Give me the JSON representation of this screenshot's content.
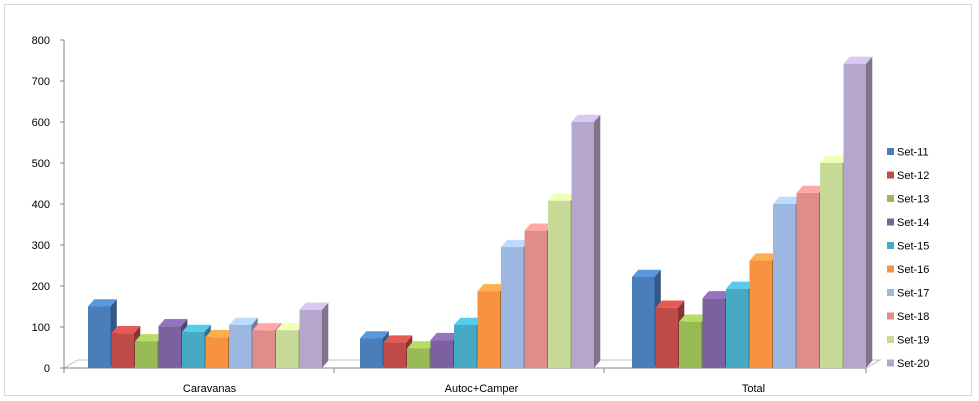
{
  "chart_data": {
    "type": "bar",
    "style": "3d-clustered-column",
    "categories": [
      "Caravanas",
      "Autoc+Camper",
      "Total"
    ],
    "series": [
      {
        "name": "Set-11",
        "color": "#4a7ebb",
        "values": [
          150,
          72,
          222
        ]
      },
      {
        "name": "Set-12",
        "color": "#be4b48",
        "values": [
          85,
          62,
          147
        ]
      },
      {
        "name": "Set-13",
        "color": "#98b954",
        "values": [
          65,
          48,
          113
        ]
      },
      {
        "name": "Set-14",
        "color": "#7d60a0",
        "values": [
          102,
          68,
          170
        ]
      },
      {
        "name": "Set-15",
        "color": "#46aac5",
        "values": [
          88,
          105,
          193
        ]
      },
      {
        "name": "Set-16",
        "color": "#f69240",
        "values": [
          75,
          187,
          262
        ]
      },
      {
        "name": "Set-17",
        "color": "#9cb7e0",
        "values": [
          105,
          295,
          400
        ]
      },
      {
        "name": "Set-18",
        "color": "#e08c8b",
        "values": [
          92,
          335,
          427
        ]
      },
      {
        "name": "Set-19",
        "color": "#c7da98",
        "values": [
          92,
          408,
          500
        ]
      },
      {
        "name": "Set-20",
        "color": "#b5a6cb",
        "values": [
          142,
          600,
          742
        ]
      }
    ],
    "y_ticks": [
      0,
      100,
      200,
      300,
      400,
      500,
      600,
      700,
      800
    ],
    "ylim": [
      0,
      800
    ],
    "title": "",
    "xlabel": "",
    "ylabel": "",
    "legend_position": "right",
    "grid": false
  }
}
